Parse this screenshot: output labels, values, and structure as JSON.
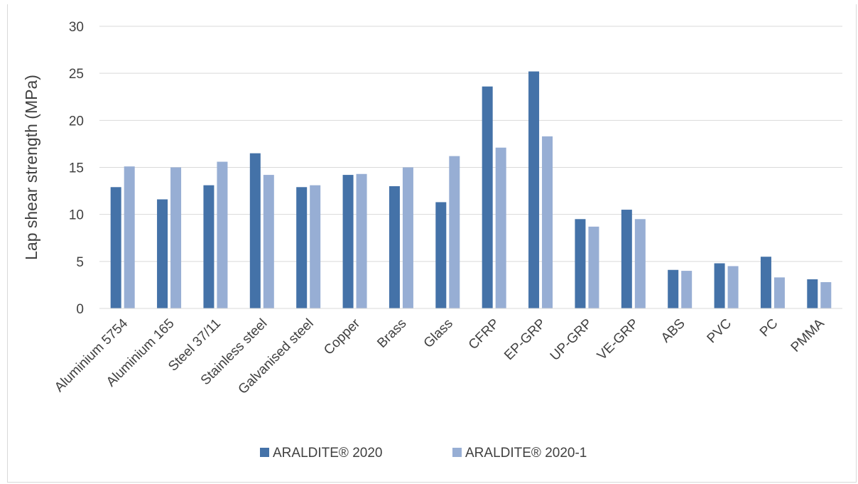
{
  "chart_data": {
    "type": "bar",
    "title": "",
    "xlabel": "",
    "ylabel": "Lap shear strength (MPa)",
    "ylim": [
      0,
      30
    ],
    "yticks": [
      0,
      5,
      10,
      15,
      20,
      25,
      30
    ],
    "grid": true,
    "legend_position": "bottom",
    "categories": [
      "Aluminium 5754",
      "Aluminium 165",
      "Steel 37/11",
      "Stainless steel",
      "Galvanised steel",
      "Copper",
      "Brass",
      "Glass",
      "CFRP",
      "EP-GRP",
      "UP-GRP",
      "VE-GRP",
      "ABS",
      "PVC",
      "PC",
      "PMMA"
    ],
    "series": [
      {
        "name": "ARALDITE® 2020",
        "color": "#4472a8",
        "values": [
          12.9,
          11.6,
          13.1,
          16.5,
          12.9,
          14.2,
          13.0,
          11.3,
          23.6,
          25.2,
          9.5,
          10.5,
          4.1,
          4.8,
          5.5,
          3.1
        ]
      },
      {
        "name": "ARALDITE® 2020-1",
        "color": "#97aed4",
        "values": [
          15.1,
          15.0,
          15.6,
          14.2,
          13.1,
          14.3,
          15.0,
          16.2,
          17.1,
          18.3,
          8.7,
          9.5,
          4.0,
          4.5,
          3.3,
          2.8
        ]
      }
    ]
  }
}
